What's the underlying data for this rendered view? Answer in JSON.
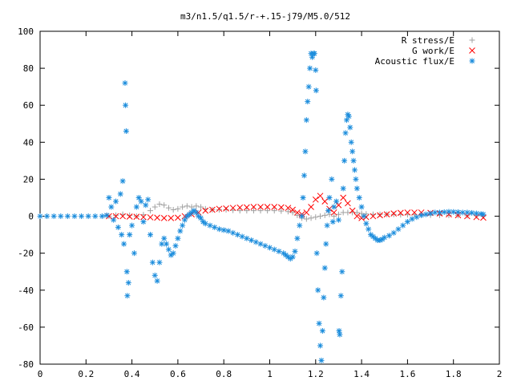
{
  "chart_data": {
    "type": "scatter",
    "title": "m3/n1.5/q1.5/r-+.15-j79/M5.0/512",
    "xlim": [
      0,
      2
    ],
    "ylim": [
      -80,
      100
    ],
    "xticks": [
      0,
      0.2,
      0.4,
      0.6,
      0.8,
      1,
      1.2,
      1.4,
      1.6,
      1.8,
      2
    ],
    "xtick_labels": [
      "0",
      "0.2",
      "0.4",
      "0.6",
      "0.8",
      "1",
      "1.2",
      "1.4",
      "1.6",
      "1.8",
      "2"
    ],
    "yticks": [
      -80,
      -60,
      -40,
      -20,
      0,
      20,
      40,
      60,
      80,
      100
    ],
    "ytick_labels": [
      "-80",
      "-60",
      "-40",
      "-20",
      "0",
      "20",
      "40",
      "60",
      "80",
      "100"
    ],
    "grid": false,
    "legend_position": "top-right",
    "series": [
      {
        "name": "R stress/E",
        "color": "#a0a0a0",
        "marker": "plus",
        "points": [
          [
            0.3,
            0
          ],
          [
            0.33,
            0.5
          ],
          [
            0.36,
            1
          ],
          [
            0.39,
            0.5
          ],
          [
            0.42,
            0
          ],
          [
            0.45,
            0.8
          ],
          [
            0.48,
            3
          ],
          [
            0.5,
            5
          ],
          [
            0.52,
            6.5
          ],
          [
            0.54,
            6
          ],
          [
            0.56,
            4.5
          ],
          [
            0.58,
            3.5
          ],
          [
            0.6,
            4
          ],
          [
            0.62,
            5
          ],
          [
            0.64,
            5.5
          ],
          [
            0.66,
            5
          ],
          [
            0.68,
            5.5
          ],
          [
            0.7,
            5
          ],
          [
            0.72,
            4
          ],
          [
            0.75,
            3.5
          ],
          [
            0.78,
            3.5
          ],
          [
            0.81,
            3.5
          ],
          [
            0.84,
            3.2
          ],
          [
            0.87,
            3
          ],
          [
            0.9,
            3
          ],
          [
            0.93,
            3
          ],
          [
            0.96,
            3
          ],
          [
            0.99,
            3
          ],
          [
            1.02,
            3
          ],
          [
            1.05,
            2.8
          ],
          [
            1.08,
            2.5
          ],
          [
            1.1,
            2
          ],
          [
            1.12,
            0.5
          ],
          [
            1.14,
            -1
          ],
          [
            1.16,
            -1.5
          ],
          [
            1.18,
            -1
          ],
          [
            1.2,
            -0.5
          ],
          [
            1.22,
            0
          ],
          [
            1.24,
            0.5
          ],
          [
            1.26,
            1
          ],
          [
            1.28,
            0
          ],
          [
            1.3,
            1
          ],
          [
            1.32,
            2
          ],
          [
            1.34,
            2
          ],
          [
            1.36,
            2
          ],
          [
            1.38,
            2
          ],
          [
            1.4,
            1.5
          ],
          [
            1.42,
            1.2
          ],
          [
            1.45,
            1
          ],
          [
            1.48,
            1
          ],
          [
            1.51,
            1
          ],
          [
            1.54,
            1
          ],
          [
            1.57,
            0.8
          ],
          [
            1.6,
            0.8
          ],
          [
            1.63,
            0.8
          ],
          [
            1.66,
            0.8
          ],
          [
            1.7,
            0.6
          ],
          [
            1.74,
            0.5
          ],
          [
            1.78,
            0.5
          ],
          [
            1.82,
            0.4
          ],
          [
            1.86,
            0.3
          ],
          [
            1.9,
            0.3
          ],
          [
            1.93,
            0.2
          ]
        ]
      },
      {
        "name": "G work/E",
        "color": "#ff0000",
        "marker": "cross",
        "points": [
          [
            0.3,
            0
          ],
          [
            0.33,
            0
          ],
          [
            0.36,
            0
          ],
          [
            0.39,
            -0.2
          ],
          [
            0.42,
            -0.3
          ],
          [
            0.45,
            -0.5
          ],
          [
            0.48,
            -0.6
          ],
          [
            0.51,
            -0.8
          ],
          [
            0.54,
            -1
          ],
          [
            0.57,
            -1
          ],
          [
            0.6,
            -0.8
          ],
          [
            0.63,
            0
          ],
          [
            0.66,
            1
          ],
          [
            0.69,
            2
          ],
          [
            0.72,
            3
          ],
          [
            0.75,
            3.5
          ],
          [
            0.78,
            4
          ],
          [
            0.81,
            4.2
          ],
          [
            0.84,
            4.5
          ],
          [
            0.87,
            4.7
          ],
          [
            0.9,
            4.8
          ],
          [
            0.93,
            5
          ],
          [
            0.96,
            5
          ],
          [
            0.99,
            5
          ],
          [
            1.02,
            5
          ],
          [
            1.05,
            4.8
          ],
          [
            1.08,
            4.5
          ],
          [
            1.1,
            3.5
          ],
          [
            1.12,
            2
          ],
          [
            1.14,
            1
          ],
          [
            1.16,
            2
          ],
          [
            1.18,
            5
          ],
          [
            1.2,
            9
          ],
          [
            1.22,
            11
          ],
          [
            1.24,
            8
          ],
          [
            1.26,
            4
          ],
          [
            1.28,
            2
          ],
          [
            1.3,
            6
          ],
          [
            1.32,
            10
          ],
          [
            1.34,
            7
          ],
          [
            1.36,
            3
          ],
          [
            1.38,
            0
          ],
          [
            1.4,
            -1
          ],
          [
            1.42,
            -0.5
          ],
          [
            1.45,
            0
          ],
          [
            1.48,
            0.5
          ],
          [
            1.51,
            1
          ],
          [
            1.54,
            1.5
          ],
          [
            1.57,
            1.8
          ],
          [
            1.6,
            2
          ],
          [
            1.63,
            2
          ],
          [
            1.66,
            2
          ],
          [
            1.7,
            1.8
          ],
          [
            1.74,
            1.5
          ],
          [
            1.78,
            1
          ],
          [
            1.82,
            0.5
          ],
          [
            1.86,
            0
          ],
          [
            1.9,
            -0.5
          ],
          [
            1.93,
            -0.8
          ]
        ]
      },
      {
        "name": "Acoustic flux/E",
        "color": "#1a8cdc",
        "marker": "star",
        "points": [
          [
            0.0,
            0
          ],
          [
            0.03,
            0
          ],
          [
            0.06,
            0
          ],
          [
            0.09,
            0
          ],
          [
            0.12,
            0
          ],
          [
            0.15,
            0
          ],
          [
            0.18,
            0
          ],
          [
            0.21,
            0
          ],
          [
            0.24,
            0
          ],
          [
            0.27,
            0
          ],
          [
            0.29,
            0.5
          ],
          [
            0.3,
            10
          ],
          [
            0.31,
            5
          ],
          [
            0.32,
            -2
          ],
          [
            0.33,
            8
          ],
          [
            0.34,
            -6
          ],
          [
            0.35,
            12
          ],
          [
            0.355,
            -10
          ],
          [
            0.36,
            19
          ],
          [
            0.365,
            -15
          ],
          [
            0.37,
            72
          ],
          [
            0.372,
            60
          ],
          [
            0.375,
            46
          ],
          [
            0.378,
            -30
          ],
          [
            0.38,
            -43
          ],
          [
            0.385,
            -36
          ],
          [
            0.39,
            -10
          ],
          [
            0.4,
            -5
          ],
          [
            0.41,
            -20
          ],
          [
            0.42,
            5
          ],
          [
            0.43,
            10
          ],
          [
            0.44,
            8
          ],
          [
            0.45,
            -3
          ],
          [
            0.46,
            6
          ],
          [
            0.47,
            9
          ],
          [
            0.48,
            -10
          ],
          [
            0.49,
            -25
          ],
          [
            0.5,
            -32
          ],
          [
            0.51,
            -35
          ],
          [
            0.52,
            -25
          ],
          [
            0.53,
            -15
          ],
          [
            0.54,
            -12
          ],
          [
            0.55,
            -15
          ],
          [
            0.56,
            -18
          ],
          [
            0.57,
            -21
          ],
          [
            0.58,
            -20
          ],
          [
            0.59,
            -16
          ],
          [
            0.6,
            -12
          ],
          [
            0.61,
            -8
          ],
          [
            0.62,
            -5
          ],
          [
            0.63,
            -2
          ],
          [
            0.64,
            0
          ],
          [
            0.65,
            1
          ],
          [
            0.66,
            2
          ],
          [
            0.67,
            3
          ],
          [
            0.68,
            2
          ],
          [
            0.69,
            0
          ],
          [
            0.7,
            -1
          ],
          [
            0.71,
            -3
          ],
          [
            0.72,
            -4
          ],
          [
            0.74,
            -5
          ],
          [
            0.76,
            -6
          ],
          [
            0.78,
            -7
          ],
          [
            0.8,
            -7.5
          ],
          [
            0.82,
            -8
          ],
          [
            0.84,
            -9
          ],
          [
            0.86,
            -10
          ],
          [
            0.88,
            -11
          ],
          [
            0.9,
            -12
          ],
          [
            0.92,
            -13
          ],
          [
            0.94,
            -14
          ],
          [
            0.96,
            -15
          ],
          [
            0.98,
            -16
          ],
          [
            1.0,
            -17
          ],
          [
            1.02,
            -18
          ],
          [
            1.04,
            -19
          ],
          [
            1.06,
            -20
          ],
          [
            1.07,
            -21
          ],
          [
            1.08,
            -22
          ],
          [
            1.09,
            -23
          ],
          [
            1.1,
            -22
          ],
          [
            1.11,
            -19
          ],
          [
            1.12,
            -12
          ],
          [
            1.13,
            -5
          ],
          [
            1.14,
            0
          ],
          [
            1.145,
            10
          ],
          [
            1.15,
            22
          ],
          [
            1.155,
            35
          ],
          [
            1.16,
            52
          ],
          [
            1.165,
            62
          ],
          [
            1.17,
            70
          ],
          [
            1.175,
            80
          ],
          [
            1.18,
            88
          ],
          [
            1.185,
            86
          ],
          [
            1.19,
            88
          ],
          [
            1.195,
            88
          ],
          [
            1.2,
            79
          ],
          [
            1.202,
            68
          ],
          [
            1.205,
            -20
          ],
          [
            1.21,
            -40
          ],
          [
            1.215,
            -58
          ],
          [
            1.22,
            -70
          ],
          [
            1.225,
            -78
          ],
          [
            1.23,
            -62
          ],
          [
            1.235,
            -44
          ],
          [
            1.24,
            -28
          ],
          [
            1.245,
            -15
          ],
          [
            1.25,
            -5
          ],
          [
            1.255,
            3
          ],
          [
            1.26,
            10
          ],
          [
            1.27,
            20
          ],
          [
            1.275,
            -3
          ],
          [
            1.28,
            5
          ],
          [
            1.29,
            8
          ],
          [
            1.3,
            -2
          ],
          [
            1.302,
            -62
          ],
          [
            1.305,
            -64
          ],
          [
            1.31,
            -43
          ],
          [
            1.315,
            -30
          ],
          [
            1.32,
            15
          ],
          [
            1.325,
            30
          ],
          [
            1.33,
            45
          ],
          [
            1.335,
            52
          ],
          [
            1.34,
            55
          ],
          [
            1.345,
            54
          ],
          [
            1.35,
            48
          ],
          [
            1.355,
            40
          ],
          [
            1.36,
            35
          ],
          [
            1.365,
            30
          ],
          [
            1.37,
            25
          ],
          [
            1.375,
            20
          ],
          [
            1.38,
            15
          ],
          [
            1.39,
            10
          ],
          [
            1.4,
            5
          ],
          [
            1.41,
            0
          ],
          [
            1.42,
            -4
          ],
          [
            1.43,
            -7
          ],
          [
            1.44,
            -10
          ],
          [
            1.45,
            -11
          ],
          [
            1.46,
            -12
          ],
          [
            1.47,
            -13
          ],
          [
            1.48,
            -13
          ],
          [
            1.49,
            -12.5
          ],
          [
            1.5,
            -11.5
          ],
          [
            1.52,
            -10.5
          ],
          [
            1.54,
            -9
          ],
          [
            1.56,
            -7
          ],
          [
            1.58,
            -5
          ],
          [
            1.6,
            -3
          ],
          [
            1.62,
            -1.5
          ],
          [
            1.64,
            -0.5
          ],
          [
            1.66,
            0.5
          ],
          [
            1.68,
            1
          ],
          [
            1.7,
            1.5
          ],
          [
            1.72,
            2
          ],
          [
            1.74,
            2
          ],
          [
            1.76,
            2.2
          ],
          [
            1.78,
            2.4
          ],
          [
            1.8,
            2.3
          ],
          [
            1.82,
            2.2
          ],
          [
            1.84,
            2
          ],
          [
            1.86,
            2
          ],
          [
            1.88,
            1.8
          ],
          [
            1.9,
            1.5
          ],
          [
            1.92,
            1.2
          ],
          [
            1.93,
            1
          ]
        ]
      }
    ]
  }
}
